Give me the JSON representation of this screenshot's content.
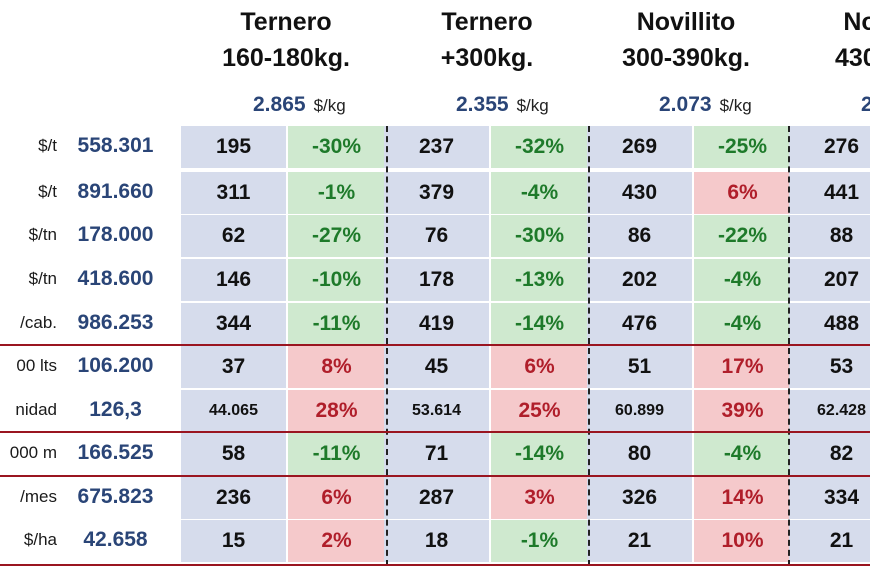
{
  "headers": [
    {
      "line1": "Ternero",
      "line2": "160-180kg."
    },
    {
      "line1": "Ternero",
      "line2": "+300kg."
    },
    {
      "line1": "Novillito",
      "line2": "300-390kg."
    },
    {
      "line1": "No",
      "line2": "430-"
    }
  ],
  "prices": [
    {
      "value": "2.865",
      "unit": "$/kg"
    },
    {
      "value": "2.355",
      "unit": "$/kg"
    },
    {
      "value": "2.073",
      "unit": "$/kg"
    },
    {
      "value": "2",
      "unit": ""
    }
  ],
  "rows": [
    {
      "unit": "$/t",
      "ref": "558.301",
      "cells": [
        {
          "v": "195",
          "p": "-30%",
          "s": "pos"
        },
        {
          "v": "237",
          "p": "-32%",
          "s": "pos"
        },
        {
          "v": "269",
          "p": "-25%",
          "s": "pos"
        },
        {
          "v": "276"
        }
      ]
    },
    {
      "unit": "$/t",
      "ref": "891.660",
      "cells": [
        {
          "v": "311",
          "p": "-1%",
          "s": "pos"
        },
        {
          "v": "379",
          "p": "-4%",
          "s": "pos"
        },
        {
          "v": "430",
          "p": "6%",
          "s": "neg"
        },
        {
          "v": "441"
        }
      ]
    },
    {
      "unit": "$/tn",
      "ref": "178.000",
      "cells": [
        {
          "v": "62",
          "p": "-27%",
          "s": "pos"
        },
        {
          "v": "76",
          "p": "-30%",
          "s": "pos"
        },
        {
          "v": "86",
          "p": "-22%",
          "s": "pos"
        },
        {
          "v": "88"
        }
      ]
    },
    {
      "unit": "$/tn",
      "ref": "418.600",
      "cells": [
        {
          "v": "146",
          "p": "-10%",
          "s": "pos"
        },
        {
          "v": "178",
          "p": "-13%",
          "s": "pos"
        },
        {
          "v": "202",
          "p": "-4%",
          "s": "pos"
        },
        {
          "v": "207"
        }
      ]
    },
    {
      "unit": "/cab.",
      "ref": "986.253",
      "cells": [
        {
          "v": "344",
          "p": "-11%",
          "s": "pos"
        },
        {
          "v": "419",
          "p": "-14%",
          "s": "pos"
        },
        {
          "v": "476",
          "p": "-4%",
          "s": "pos"
        },
        {
          "v": "488"
        }
      ]
    },
    {
      "unit": "00 lts",
      "ref": "106.200",
      "cells": [
        {
          "v": "37",
          "p": "8%",
          "s": "neg"
        },
        {
          "v": "45",
          "p": "6%",
          "s": "neg"
        },
        {
          "v": "51",
          "p": "17%",
          "s": "neg"
        },
        {
          "v": "53"
        }
      ]
    },
    {
      "unit": "nidad",
      "ref": "126,3",
      "cells": [
        {
          "v": "44.065",
          "p": "28%",
          "s": "neg",
          "small": true
        },
        {
          "v": "53.614",
          "p": "25%",
          "s": "neg",
          "small": true
        },
        {
          "v": "60.899",
          "p": "39%",
          "s": "neg",
          "small": true
        },
        {
          "v": "62.428",
          "small": true
        }
      ]
    },
    {
      "unit": "000 m",
      "ref": "166.525",
      "cells": [
        {
          "v": "58",
          "p": "-11%",
          "s": "pos"
        },
        {
          "v": "71",
          "p": "-14%",
          "s": "pos"
        },
        {
          "v": "80",
          "p": "-4%",
          "s": "pos"
        },
        {
          "v": "82"
        }
      ]
    },
    {
      "unit": "/mes",
      "ref": "675.823",
      "cells": [
        {
          "v": "236",
          "p": "6%",
          "s": "neg"
        },
        {
          "v": "287",
          "p": "3%",
          "s": "neg"
        },
        {
          "v": "326",
          "p": "14%",
          "s": "neg"
        },
        {
          "v": "334"
        }
      ]
    },
    {
      "unit": "$/ha",
      "ref": "42.658",
      "cells": [
        {
          "v": "15",
          "p": "2%",
          "s": "neg"
        },
        {
          "v": "18",
          "p": "-1%",
          "s": "pos"
        },
        {
          "v": "21",
          "p": "10%",
          "s": "neg"
        },
        {
          "v": "21"
        }
      ]
    }
  ]
}
